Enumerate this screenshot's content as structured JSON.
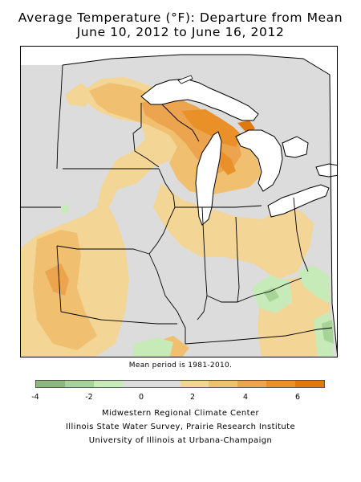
{
  "title": {
    "line1": "Average Temperature (°F): Departure from Mean",
    "line2": "June 10, 2012 to June 16, 2012"
  },
  "map": {
    "subject": "Midwest temperature departure",
    "lake_color": "#ffffff",
    "outside_color": "#ffffff"
  },
  "note": "Mean period is 1981-2010.",
  "legend": {
    "colors": [
      "#8cb87c",
      "#a6d496",
      "#c6ebb8",
      "#dcdcdc",
      "#dcdcdc",
      "#f3d596",
      "#f0c070",
      "#eca44f",
      "#ea9028",
      "#e07a10"
    ],
    "tick_labels": [
      "-4",
      "-2",
      "0",
      "2",
      "4",
      "6"
    ]
  },
  "credits": {
    "line1": "Midwestern Regional Climate Center",
    "line2": "Illinois State Water Survey, Prairie Research Institute",
    "line3": "University of Illinois at Urbana-Champaign"
  }
}
